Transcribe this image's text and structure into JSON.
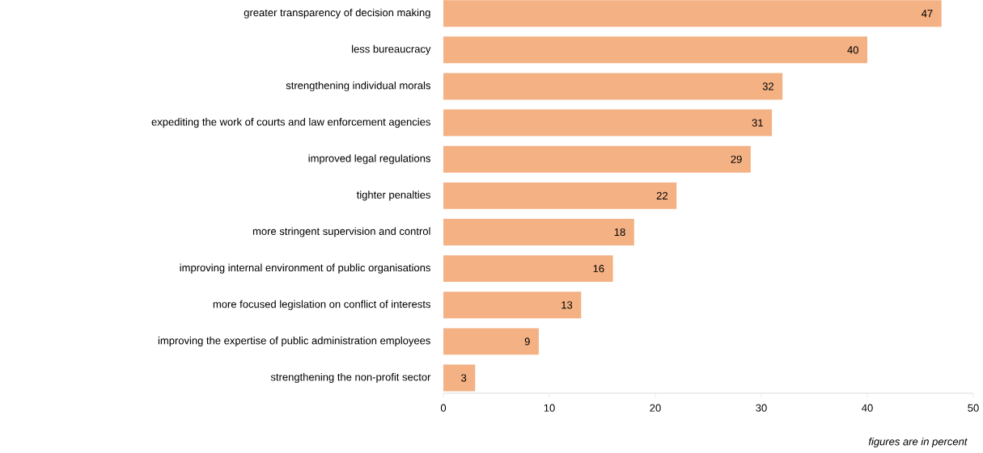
{
  "chart_data": {
    "type": "bar",
    "orientation": "horizontal",
    "categories": [
      "greater transparency of decision making",
      "less bureaucracy",
      "strengthening individual morals",
      "expediting the work of courts and law enforcement agencies",
      "improved legal regulations",
      "tighter penalties",
      "more stringent supervision and control",
      "improving internal environment of public organisations",
      "more focused legislation on conflict of interests",
      "improving the expertise of public administration employees",
      "strengthening the non-profit sector"
    ],
    "values": [
      47,
      40,
      32,
      31,
      29,
      22,
      18,
      16,
      13,
      9,
      3
    ],
    "color": "#f4b183",
    "xlim": [
      0,
      50
    ],
    "xticks": [
      0,
      10,
      20,
      30,
      40,
      50
    ],
    "data_labels": true,
    "annotations": [
      "figures are in percent"
    ]
  }
}
